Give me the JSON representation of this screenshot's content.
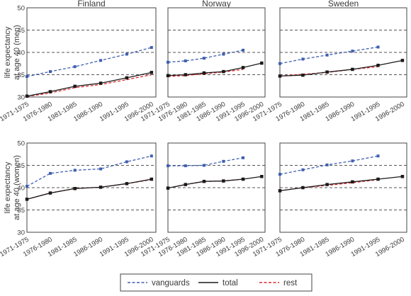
{
  "chart_data": {
    "type": "line",
    "categories": [
      "1971-1975",
      "1976-1980",
      "1981-1985",
      "1986-1990",
      "1991-1995",
      "1996-2000"
    ],
    "columns": [
      "Finland",
      "Norway",
      "Sweden"
    ],
    "rows": [
      {
        "ylabel": [
          "life expectancy",
          "at age 40 (men)"
        ],
        "ylim": [
          30,
          50
        ],
        "yticks": [
          "30",
          "35",
          "40",
          "45",
          "50"
        ]
      },
      {
        "ylabel": [
          "life expectancy",
          "at age 40 (women)"
        ],
        "ylim": [
          30,
          50
        ],
        "yticks": [
          "30",
          "35",
          "40",
          "45",
          "50"
        ]
      }
    ],
    "grid": "dashed horizontal",
    "legend_placement": "bottom-center",
    "legend": [
      {
        "name": "vanguards",
        "color": "#3f5fb0",
        "dash": true
      },
      {
        "name": "total",
        "color": "#1a1a1a",
        "dash": false
      },
      {
        "name": "rest",
        "color": "#e0262b",
        "dash": true
      }
    ],
    "panels": [
      {
        "row": 0,
        "col": 0,
        "series": [
          {
            "name": "vanguards",
            "values": [
              34.6,
              35.7,
              36.8,
              38.2,
              39.6,
              41.1
            ]
          },
          {
            "name": "total",
            "values": [
              30.2,
              31.2,
              32.4,
              33.1,
              34.3,
              35.5
            ]
          },
          {
            "name": "rest",
            "values": [
              30.1,
              30.9,
              32.1,
              32.8,
              33.9,
              35.0
            ]
          }
        ]
      },
      {
        "row": 0,
        "col": 1,
        "series": [
          {
            "name": "vanguards",
            "values": [
              37.8,
              38.1,
              38.7,
              39.6,
              40.5,
              null
            ]
          },
          {
            "name": "total",
            "values": [
              34.8,
              35.0,
              35.4,
              35.7,
              36.6,
              37.6
            ]
          },
          {
            "name": "rest",
            "values": [
              34.6,
              34.8,
              35.2,
              35.6,
              36.2,
              null
            ]
          }
        ]
      },
      {
        "row": 0,
        "col": 2,
        "series": [
          {
            "name": "vanguards",
            "values": [
              37.5,
              38.5,
              39.4,
              40.3,
              41.2,
              null
            ]
          },
          {
            "name": "total",
            "values": [
              34.7,
              34.9,
              35.6,
              36.2,
              37.1,
              38.2
            ]
          },
          {
            "name": "rest",
            "values": [
              34.7,
              35.1,
              35.5,
              36.2,
              36.8,
              null
            ]
          }
        ]
      },
      {
        "row": 1,
        "col": 0,
        "series": [
          {
            "name": "vanguards",
            "values": [
              40.3,
              43.2,
              43.9,
              44.2,
              45.8,
              47.1
            ]
          },
          {
            "name": "total",
            "values": [
              37.4,
              38.8,
              39.8,
              40.1,
              40.9,
              41.9
            ]
          },
          {
            "name": "rest",
            "values": [
              37.4,
              38.8,
              39.8,
              40.1,
              40.9,
              41.8
            ]
          }
        ]
      },
      {
        "row": 1,
        "col": 1,
        "series": [
          {
            "name": "vanguards",
            "values": [
              44.9,
              44.9,
              45.0,
              45.9,
              46.7,
              null
            ]
          },
          {
            "name": "total",
            "values": [
              39.9,
              40.7,
              41.4,
              41.5,
              41.9,
              42.5
            ]
          },
          {
            "name": "rest",
            "values": [
              39.9,
              40.7,
              41.4,
              41.5,
              41.9,
              null
            ]
          }
        ]
      },
      {
        "row": 1,
        "col": 2,
        "series": [
          {
            "name": "vanguards",
            "values": [
              43.0,
              44.0,
              45.1,
              46.0,
              47.1,
              null
            ]
          },
          {
            "name": "total",
            "values": [
              39.3,
              40.0,
              40.7,
              41.3,
              41.9,
              42.5
            ]
          },
          {
            "name": "rest",
            "values": [
              39.3,
              40.0,
              40.5,
              41.1,
              41.8,
              null
            ]
          }
        ]
      }
    ]
  }
}
